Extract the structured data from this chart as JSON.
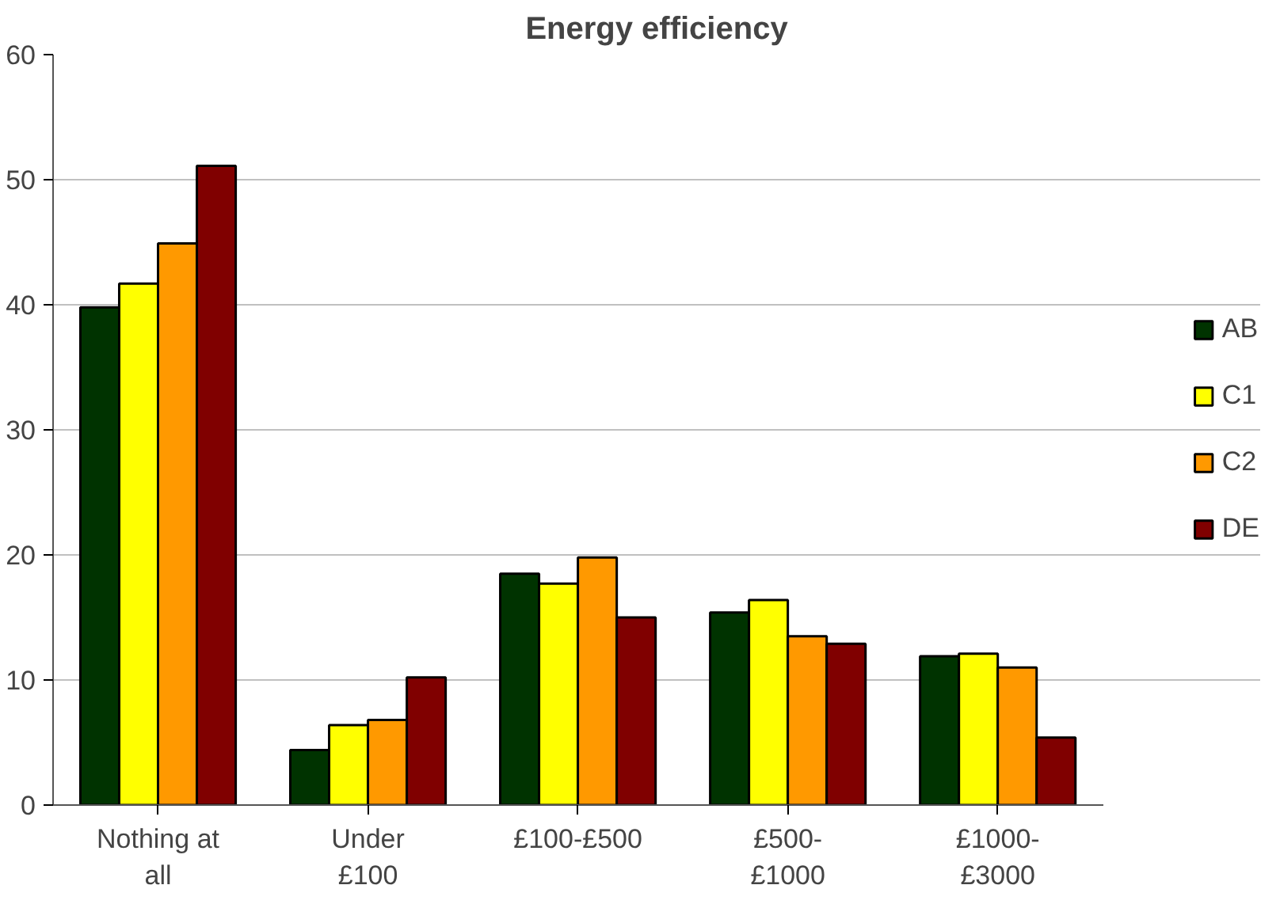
{
  "chart_data": {
    "type": "bar",
    "title": "Energy efficiency",
    "categories": [
      "Nothing at\nall",
      "Under\n£100",
      "£100-£500",
      "£500-\n£1000",
      "£1000-\n£3000"
    ],
    "series": [
      {
        "name": "AB",
        "color": "#003300",
        "values": [
          39.8,
          4.4,
          18.5,
          15.4,
          11.9
        ]
      },
      {
        "name": "C1",
        "color": "#ffff00",
        "values": [
          41.7,
          6.4,
          17.7,
          16.4,
          12.1
        ]
      },
      {
        "name": "C2",
        "color": "#ff9900",
        "values": [
          44.9,
          6.8,
          19.8,
          13.5,
          11.0
        ]
      },
      {
        "name": "DE",
        "color": "#800000",
        "values": [
          51.1,
          10.2,
          15.0,
          12.9,
          5.4
        ]
      }
    ],
    "ylim": [
      0,
      60
    ],
    "yticks": [
      0,
      10,
      20,
      30,
      40,
      50,
      60
    ],
    "grid": "y",
    "legend": "right"
  }
}
